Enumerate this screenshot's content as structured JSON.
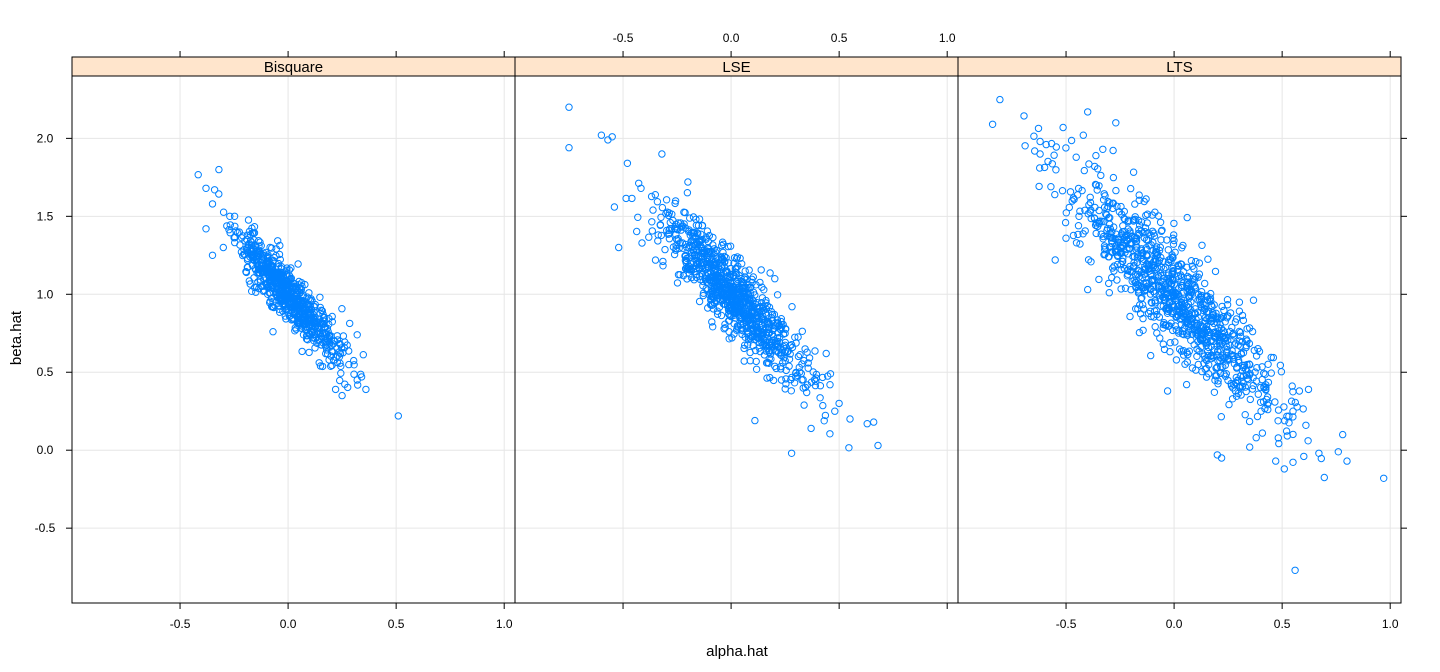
{
  "chart_data": {
    "type": "scatter",
    "xlabel": "alpha.hat",
    "ylabel": "beta.hat",
    "xlim": [
      -1.0,
      1.05
    ],
    "ylim": [
      -0.98,
      2.4
    ],
    "x_ticks": [
      -0.5,
      0.0,
      0.5,
      1.0
    ],
    "x_tick_labels": [
      "-0.5",
      "0.0",
      "0.5",
      "1.0"
    ],
    "y_ticks": [
      -0.5,
      0.0,
      0.5,
      1.0,
      1.5,
      2.0
    ],
    "y_tick_labels": [
      "-0.5",
      "0.0",
      "0.5",
      "1.0",
      "1.5",
      "2.0"
    ],
    "grid": true,
    "point_color": "#0080ff",
    "strip_color": "#ffe5cc",
    "panels": [
      {
        "name": "Bisquare",
        "cloud": {
          "n": 700,
          "seed": 11,
          "x_mean": 0.0,
          "x_sd": 0.12,
          "slope": -1.55,
          "intercept": 1.0,
          "resid_sd": 0.085
        },
        "points": [
          {
            "x": -0.32,
            "y": 1.8
          },
          {
            "x": -0.38,
            "y": 1.68
          },
          {
            "x": -0.34,
            "y": 1.67
          },
          {
            "x": -0.38,
            "y": 1.42
          },
          {
            "x": -0.35,
            "y": 1.25
          },
          {
            "x": -0.35,
            "y": 1.58
          },
          {
            "x": 0.51,
            "y": 0.22
          },
          {
            "x": 0.25,
            "y": 0.35
          },
          {
            "x": 0.22,
            "y": 0.39
          },
          {
            "x": 0.36,
            "y": 0.39
          },
          {
            "x": 0.32,
            "y": 0.45
          },
          {
            "x": 0.34,
            "y": 0.47
          },
          {
            "x": 0.32,
            "y": 0.74
          },
          {
            "x": -0.07,
            "y": 0.76
          },
          {
            "x": 0.15,
            "y": 0.54
          },
          {
            "x": -0.3,
            "y": 1.3
          },
          {
            "x": -0.27,
            "y": 1.5
          }
        ]
      },
      {
        "name": "LSE",
        "cloud": {
          "n": 900,
          "seed": 23,
          "x_mean": 0.0,
          "x_sd": 0.16,
          "slope": -1.45,
          "intercept": 1.0,
          "resid_sd": 0.12
        },
        "points": [
          {
            "x": -0.75,
            "y": 2.2
          },
          {
            "x": -0.75,
            "y": 1.94
          },
          {
            "x": -0.6,
            "y": 2.02
          },
          {
            "x": -0.55,
            "y": 2.01
          },
          {
            "x": -0.57,
            "y": 1.99
          },
          {
            "x": -0.54,
            "y": 1.56
          },
          {
            "x": -0.52,
            "y": 1.3
          },
          {
            "x": -0.48,
            "y": 1.84
          },
          {
            "x": -0.32,
            "y": 1.9
          },
          {
            "x": -0.2,
            "y": 1.72
          },
          {
            "x": 0.66,
            "y": 0.18
          },
          {
            "x": 0.68,
            "y": 0.03
          },
          {
            "x": 0.63,
            "y": 0.17
          },
          {
            "x": 0.55,
            "y": 0.2
          },
          {
            "x": 0.5,
            "y": 0.3
          },
          {
            "x": 0.28,
            "y": -0.02
          },
          {
            "x": 0.48,
            "y": 0.25
          },
          {
            "x": 0.46,
            "y": 0.49
          },
          {
            "x": 0.37,
            "y": 0.14
          },
          {
            "x": 0.11,
            "y": 0.19
          },
          {
            "x": 0.44,
            "y": 0.62
          },
          {
            "x": 0.35,
            "y": 0.37
          }
        ]
      },
      {
        "name": "LTS",
        "cloud": {
          "n": 1000,
          "seed": 37,
          "x_mean": 0.0,
          "x_sd": 0.24,
          "slope": -1.4,
          "intercept": 1.0,
          "resid_sd": 0.17
        },
        "points": [
          {
            "x": -0.84,
            "y": 2.09
          },
          {
            "x": -0.4,
            "y": 2.17
          },
          {
            "x": -0.27,
            "y": 2.1
          },
          {
            "x": -0.42,
            "y": 2.02
          },
          {
            "x": -0.62,
            "y": 1.98
          },
          {
            "x": -0.62,
            "y": 1.9
          },
          {
            "x": -0.57,
            "y": 1.69
          },
          {
            "x": -0.55,
            "y": 1.22
          },
          {
            "x": -0.33,
            "y": 1.93
          },
          {
            "x": 0.97,
            "y": -0.18
          },
          {
            "x": 0.56,
            "y": -0.77
          },
          {
            "x": 0.78,
            "y": 0.1
          },
          {
            "x": 0.8,
            "y": -0.07
          },
          {
            "x": 0.76,
            "y": -0.01
          },
          {
            "x": 0.67,
            "y": -0.02
          },
          {
            "x": 0.6,
            "y": -0.04
          },
          {
            "x": 0.51,
            "y": -0.12
          },
          {
            "x": 0.47,
            "y": -0.07
          },
          {
            "x": 0.2,
            "y": -0.03
          },
          {
            "x": 0.22,
            "y": -0.05
          },
          {
            "x": 0.35,
            "y": 0.02
          },
          {
            "x": 0.61,
            "y": 0.16
          },
          {
            "x": 0.55,
            "y": 0.25
          },
          {
            "x": 0.62,
            "y": 0.06
          },
          {
            "x": 0.58,
            "y": 0.38
          },
          {
            "x": -0.4,
            "y": 1.03
          },
          {
            "x": -0.3,
            "y": 1.01
          },
          {
            "x": 0.38,
            "y": 0.08
          },
          {
            "x": -0.03,
            "y": 0.38
          },
          {
            "x": -0.05,
            "y": 0.68
          },
          {
            "x": -0.5,
            "y": 1.36
          },
          {
            "x": -0.44,
            "y": 1.5
          }
        ]
      }
    ]
  }
}
